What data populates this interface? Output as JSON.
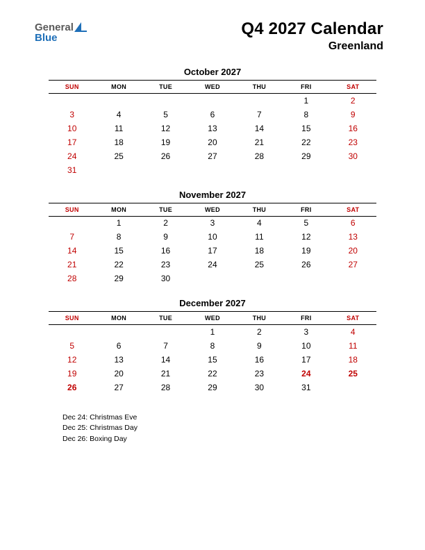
{
  "logo": {
    "text_general": "General",
    "text_blue": "Blue",
    "shape_color": "#1e6fb8",
    "text_gray": "#5a5a5a"
  },
  "header": {
    "title": "Q4 2027 Calendar",
    "subtitle": "Greenland"
  },
  "day_headers": [
    "SUN",
    "MON",
    "TUE",
    "WED",
    "THU",
    "FRI",
    "SAT"
  ],
  "colors": {
    "weekend": "#c00000",
    "text": "#000000",
    "background": "#ffffff",
    "rule": "#000000"
  },
  "months": [
    {
      "name": "October 2027",
      "weeks": [
        [
          "",
          "",
          "",
          "",
          "",
          "1",
          "2"
        ],
        [
          "3",
          "4",
          "5",
          "6",
          "7",
          "8",
          "9"
        ],
        [
          "10",
          "11",
          "12",
          "13",
          "14",
          "15",
          "16"
        ],
        [
          "17",
          "18",
          "19",
          "20",
          "21",
          "22",
          "23"
        ],
        [
          "24",
          "25",
          "26",
          "27",
          "28",
          "29",
          "30"
        ],
        [
          "31",
          "",
          "",
          "",
          "",
          "",
          ""
        ]
      ],
      "holidays_idx": []
    },
    {
      "name": "November 2027",
      "weeks": [
        [
          "",
          "1",
          "2",
          "3",
          "4",
          "5",
          "6"
        ],
        [
          "7",
          "8",
          "9",
          "10",
          "11",
          "12",
          "13"
        ],
        [
          "14",
          "15",
          "16",
          "17",
          "18",
          "19",
          "20"
        ],
        [
          "21",
          "22",
          "23",
          "24",
          "25",
          "26",
          "27"
        ],
        [
          "28",
          "29",
          "30",
          "",
          "",
          "",
          ""
        ]
      ],
      "holidays_idx": []
    },
    {
      "name": "December 2027",
      "weeks": [
        [
          "",
          "",
          "",
          "1",
          "2",
          "3",
          "4"
        ],
        [
          "5",
          "6",
          "7",
          "8",
          "9",
          "10",
          "11"
        ],
        [
          "12",
          "13",
          "14",
          "15",
          "16",
          "17",
          "18"
        ],
        [
          "19",
          "20",
          "21",
          "22",
          "23",
          "24",
          "25"
        ],
        [
          "26",
          "27",
          "28",
          "29",
          "30",
          "31",
          ""
        ]
      ],
      "holidays_idx": [
        [
          3,
          5
        ],
        [
          3,
          6
        ],
        [
          4,
          0
        ]
      ]
    }
  ],
  "holiday_notes": [
    "Dec 24: Christmas Eve",
    "Dec 25: Christmas Day",
    "Dec 26: Boxing Day"
  ]
}
